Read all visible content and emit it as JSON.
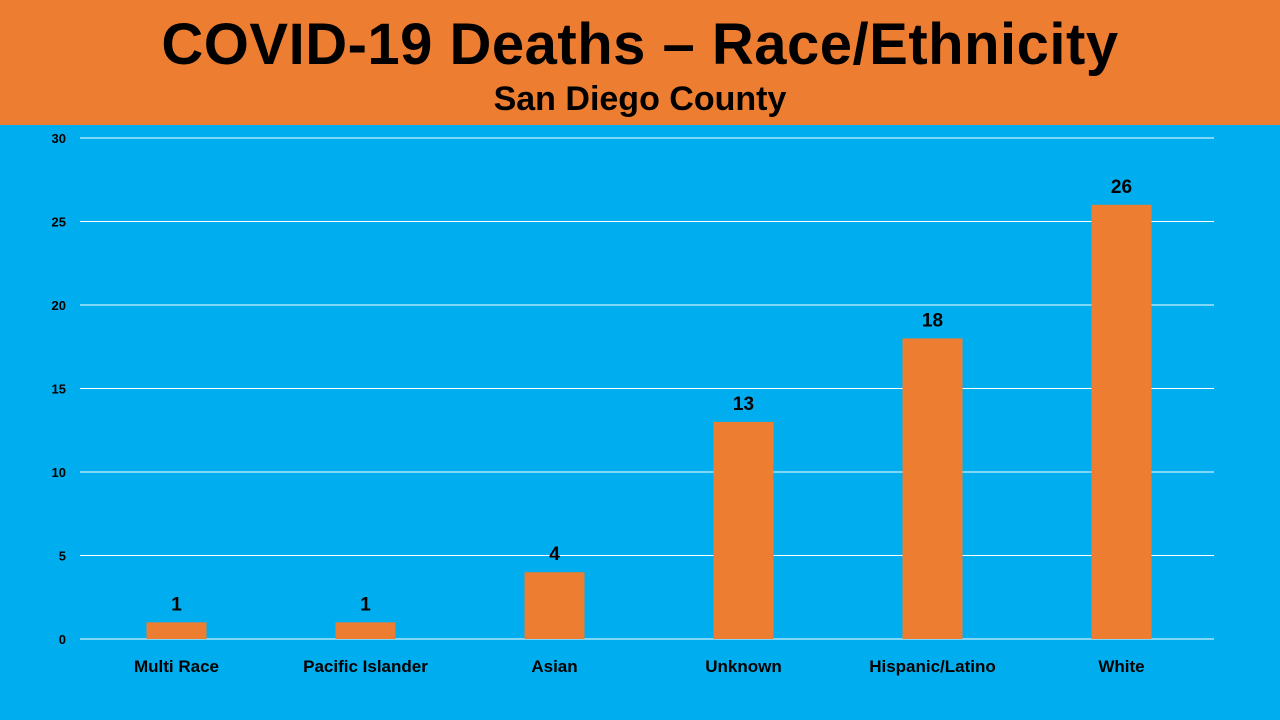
{
  "colors": {
    "background": "#00AEEF",
    "header": "#ED7D31",
    "bar": "#ED7D31",
    "gridline": "#FFFFFF",
    "text": "#000000"
  },
  "header": {
    "title": "COVID-19 Deaths – Race/Ethnicity",
    "subtitle": "San Diego County"
  },
  "chart_data": {
    "type": "bar",
    "title": "COVID-19 Deaths – Race/Ethnicity",
    "subtitle": "San Diego County",
    "categories": [
      "Multi Race",
      "Pacific Islander",
      "Asian",
      "Unknown",
      "Hispanic/Latino",
      "White"
    ],
    "values": [
      1,
      1,
      4,
      13,
      18,
      26
    ],
    "yticks": [
      0,
      5,
      10,
      15,
      20,
      25,
      30
    ],
    "ylim": [
      0,
      30
    ],
    "xlabel": "",
    "ylabel": "",
    "grid": true,
    "data_labels": true
  }
}
